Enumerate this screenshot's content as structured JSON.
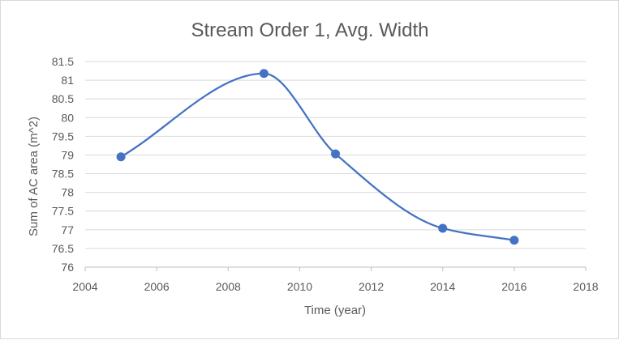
{
  "chart_data": {
    "type": "scatter",
    "title": "Stream Order 1, Avg. Width",
    "xlabel": "Time (year)",
    "ylabel": "Sum of AC area (m^2)",
    "xlim": [
      2004,
      2018
    ],
    "ylim": [
      76,
      81.5
    ],
    "x_ticks": [
      2004,
      2006,
      2008,
      2010,
      2012,
      2014,
      2016,
      2018
    ],
    "y_ticks": [
      76,
      76.5,
      77,
      77.5,
      78,
      78.5,
      79,
      79.5,
      80,
      80.5,
      81,
      81.5
    ],
    "x_tick_labels": [
      "2004",
      "2006",
      "2008",
      "2010",
      "2012",
      "2014",
      "2016",
      "2018"
    ],
    "y_tick_labels": [
      "76",
      "76.5",
      "77",
      "77.5",
      "78",
      "78.5",
      "79",
      "79.5",
      "80",
      "80.5",
      "81",
      "81.5"
    ],
    "smooth_line": true,
    "grid": "horizontal",
    "legend": "none",
    "series": [
      {
        "x": [
          2005,
          2009,
          2011,
          2014,
          2016
        ],
        "y": [
          78.95,
          81.18,
          79.03,
          77.04,
          76.72
        ],
        "color": "#4472c4"
      }
    ]
  }
}
